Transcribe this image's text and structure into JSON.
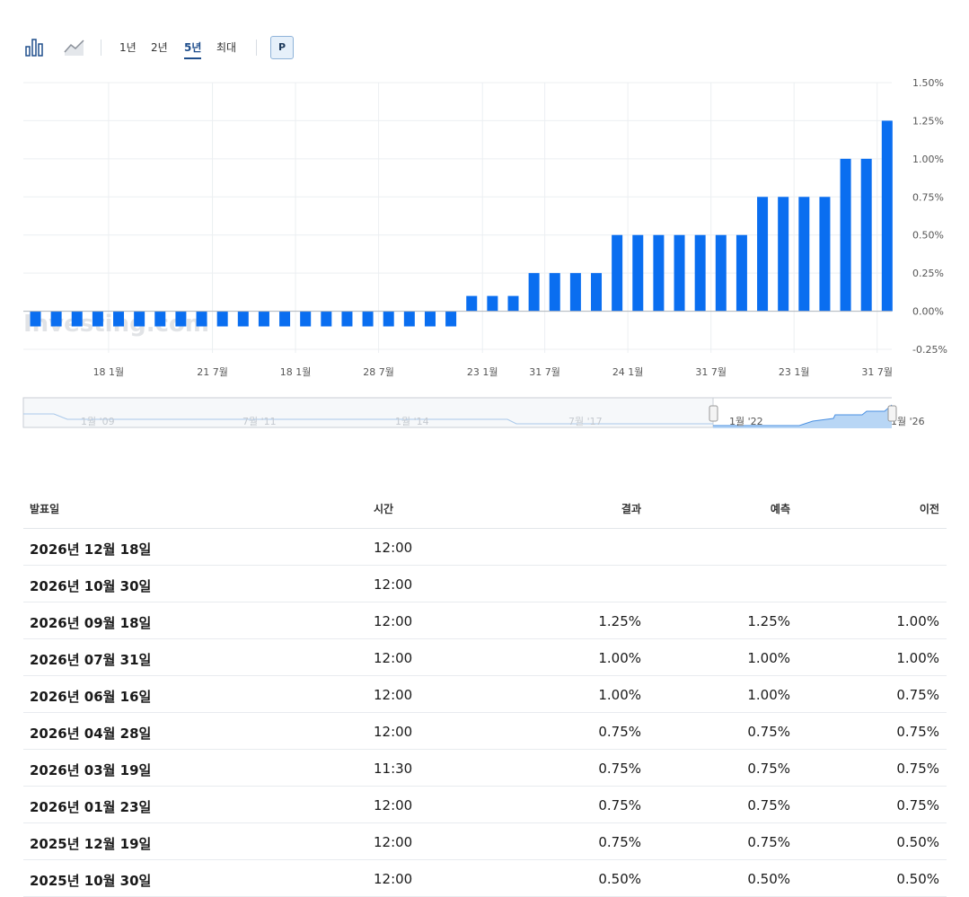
{
  "toolbar": {
    "chart_type_icons": [
      "bar-chart-icon",
      "area-chart-icon"
    ],
    "periods": [
      "1년",
      "2년",
      "5년",
      "최대"
    ],
    "active_period": "5년",
    "p_button": "P"
  },
  "chart_data": {
    "type": "bar",
    "color": "#0a6ef0",
    "values": [
      -0.1,
      -0.1,
      -0.1,
      -0.1,
      -0.1,
      -0.1,
      -0.1,
      -0.1,
      -0.1,
      -0.1,
      -0.1,
      -0.1,
      -0.1,
      -0.1,
      -0.1,
      -0.1,
      -0.1,
      -0.1,
      -0.1,
      -0.1,
      -0.1,
      0.1,
      0.1,
      0.1,
      0.25,
      0.25,
      0.25,
      0.25,
      0.5,
      0.5,
      0.5,
      0.5,
      0.5,
      0.5,
      0.5,
      0.75,
      0.75,
      0.75,
      0.75,
      1.0,
      1.0,
      1.25
    ],
    "ylim": [
      -0.25,
      1.5
    ],
    "y_ticks": [
      "1.50%",
      "1.25%",
      "1.00%",
      "0.75%",
      "0.50%",
      "0.25%",
      "0.00%",
      "-0.25%"
    ],
    "x_tick_labels": [
      "18 1월",
      "21 7월",
      "18 1월",
      "28 7월",
      "23 1월",
      "31 7월",
      "24 1월",
      "31 7월",
      "23 1월",
      "31 7월"
    ],
    "grid": true,
    "watermark": "Investing.com"
  },
  "navigator": {
    "labels": [
      "1월 '09",
      "7월 '11",
      "1월 '14",
      "7월 '17",
      "1월 '22",
      "1월 '26"
    ]
  },
  "table": {
    "headers": {
      "date": "발표일",
      "time": "시간",
      "actual": "결과",
      "forecast": "예측",
      "previous": "이전"
    },
    "rows": [
      {
        "date": "2026년 12월 18일",
        "time": "12:00",
        "actual": "",
        "forecast": "",
        "previous": ""
      },
      {
        "date": "2026년 10월 30일",
        "time": "12:00",
        "actual": "",
        "forecast": "",
        "previous": ""
      },
      {
        "date": "2026년 09월 18일",
        "time": "12:00",
        "actual": "1.25%",
        "forecast": "1.25%",
        "previous": "1.00%"
      },
      {
        "date": "2026년 07월 31일",
        "time": "12:00",
        "actual": "1.00%",
        "forecast": "1.00%",
        "previous": "1.00%"
      },
      {
        "date": "2026년 06월 16일",
        "time": "12:00",
        "actual": "1.00%",
        "forecast": "1.00%",
        "previous": "0.75%"
      },
      {
        "date": "2026년 04월 28일",
        "time": "12:00",
        "actual": "0.75%",
        "forecast": "0.75%",
        "previous": "0.75%"
      },
      {
        "date": "2026년 03월 19일",
        "time": "11:30",
        "actual": "0.75%",
        "forecast": "0.75%",
        "previous": "0.75%"
      },
      {
        "date": "2026년 01월 23일",
        "time": "12:00",
        "actual": "0.75%",
        "forecast": "0.75%",
        "previous": "0.75%"
      },
      {
        "date": "2025년 12월 19일",
        "time": "12:00",
        "actual": "0.75%",
        "forecast": "0.75%",
        "previous": "0.50%"
      },
      {
        "date": "2025년 10월 30일",
        "time": "12:00",
        "actual": "0.50%",
        "forecast": "0.50%",
        "previous": "0.50%"
      }
    ]
  }
}
